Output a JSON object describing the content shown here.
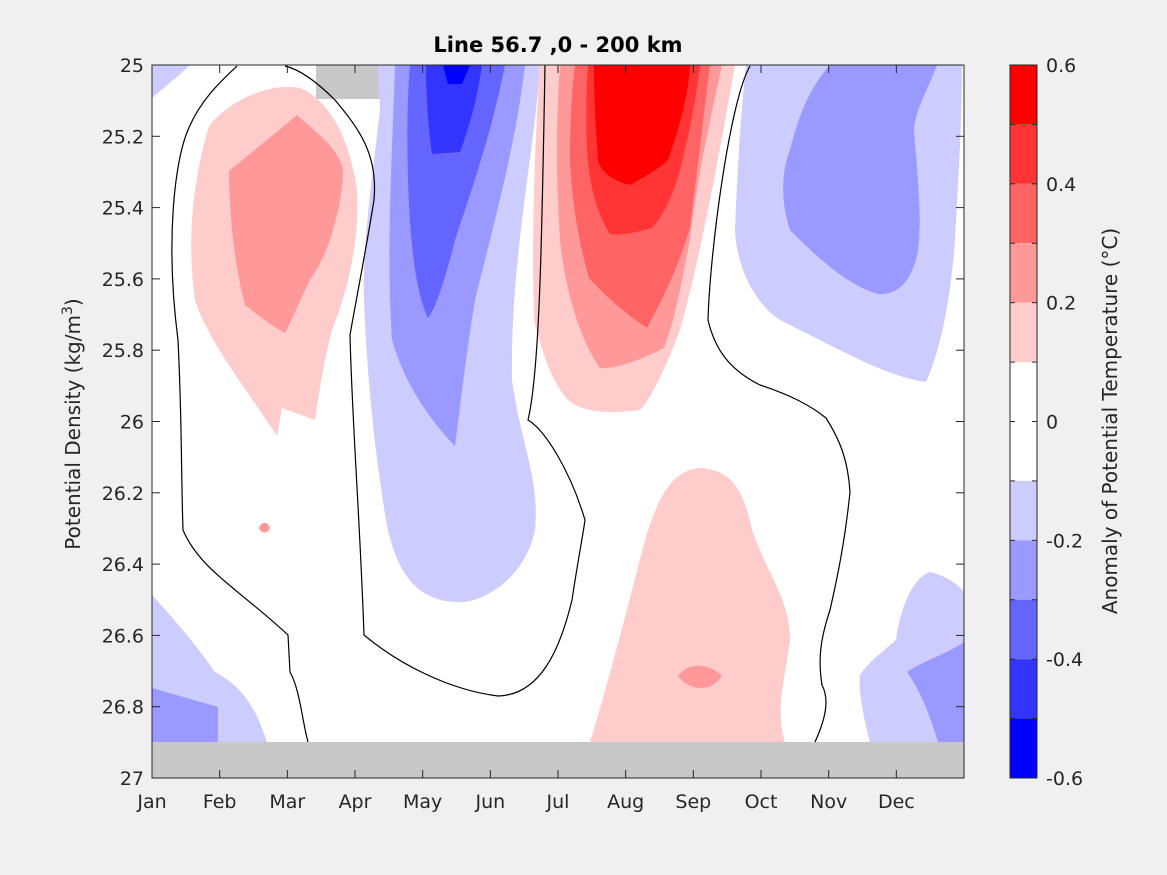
{
  "chart_data": {
    "type": "heatmap",
    "title": "Line 56.7 ,0 - 200 km",
    "ylabel": "Potential Density (kg/m3)",
    "ylabel_parts": [
      "Potential Density (kg/m",
      "3",
      ")"
    ],
    "xlabel": "",
    "x_categories": [
      "Jan",
      "Feb",
      "Mar",
      "Apr",
      "May",
      "Jun",
      "Jul",
      "Aug",
      "Sep",
      "Oct",
      "Nov",
      "Dec"
    ],
    "y_ticks": [
      25,
      25.2,
      25.4,
      25.6,
      25.8,
      26,
      26.2,
      26.4,
      26.6,
      26.8,
      27
    ],
    "ylim": [
      25,
      27
    ],
    "y_reversed": true,
    "missing_data_color": "#c8c8c8",
    "zero_contour": true,
    "colorbar": {
      "label": "Anomaly of Potential Temperature (°C)",
      "range": [
        -0.6,
        0.6
      ],
      "tick_values": [
        -0.6,
        -0.5,
        -0.4,
        -0.3,
        -0.2,
        -0.1,
        0,
        0.1,
        0.2,
        0.3,
        0.4,
        0.5,
        0.6
      ],
      "tick_labels": [
        "0.6",
        "0.4",
        "0.2",
        "0",
        "-0.2",
        "-0.4",
        "-0.6"
      ],
      "levels": [
        {
          "range": [
            0.5,
            0.6
          ],
          "color": "#ff0000"
        },
        {
          "range": [
            0.4,
            0.5
          ],
          "color": "#ff3434"
        },
        {
          "range": [
            0.3,
            0.4
          ],
          "color": "#ff6464"
        },
        {
          "range": [
            0.2,
            0.3
          ],
          "color": "#ff9999"
        },
        {
          "range": [
            0.1,
            0.2
          ],
          "color": "#ffcccc"
        },
        {
          "range": [
            0,
            0.1
          ],
          "color": "#ffffff"
        },
        {
          "range": [
            -0.1,
            0
          ],
          "color": "#ffffff"
        },
        {
          "range": [
            -0.2,
            -0.1
          ],
          "color": "#ccccff"
        },
        {
          "range": [
            -0.3,
            -0.2
          ],
          "color": "#9999ff"
        },
        {
          "range": [
            -0.4,
            -0.3
          ],
          "color": "#6464ff"
        },
        {
          "range": [
            -0.5,
            -0.4
          ],
          "color": "#3434ff"
        },
        {
          "range": [
            -0.6,
            -0.5
          ],
          "color": "#0000ff"
        }
      ]
    }
  }
}
